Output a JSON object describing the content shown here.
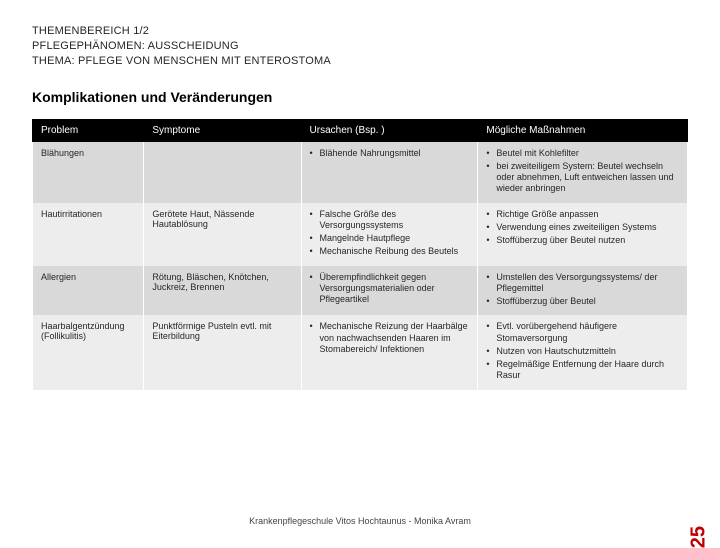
{
  "header": {
    "line1": "THEMENBEREICH 1/2",
    "line2": "PFLEGEPHÄNOMEN: AUSSCHEIDUNG",
    "line3": "THEMA: PFLEGE VON MENSCHEN MIT ENTEROSTOMA"
  },
  "section_title": "Komplikationen und Veränderungen",
  "table": {
    "columns": [
      "Problem",
      "Symptome",
      "Ursachen (Bsp. )",
      "Mögliche Maßnahmen"
    ],
    "rows": [
      {
        "problem": "Blähungen",
        "symptome": "",
        "ursachen": [
          "Blähende Nahrungsmittel"
        ],
        "massnahmen": [
          "Beutel mit Kohlefilter",
          "bei zweiteiligem System: Beutel wechseln oder abnehmen, Luft entweichen lassen und wieder anbringen"
        ]
      },
      {
        "problem": "Hautirritationen",
        "symptome": "Gerötete Haut, Nässende Hautablösung",
        "ursachen": [
          "Falsche Größe des Versorgungssystems",
          "Mangelnde Hautpflege",
          "Mechanische Reibung des Beutels"
        ],
        "massnahmen": [
          "Richtige Größe anpassen",
          "Verwendung eines zweiteiligen Systems",
          "Stoffüberzug über Beutel nutzen"
        ]
      },
      {
        "problem": "Allergien",
        "symptome": "Rötung, Bläschen, Knötchen, Juckreiz, Brennen",
        "ursachen": [
          "Überempfindlichkeit gegen Versorgungsmaterialien oder Pflegeartikel"
        ],
        "massnahmen": [
          "Umstellen des Versorgungssystems/ der Pflegemittel",
          "Stoffüberzug über Beutel"
        ]
      },
      {
        "problem": "Haarbalgentzündung (Follikulitis)",
        "symptome": "Punktförmige Pusteln evtl. mit Eiterbildung",
        "ursachen": [
          "Mechanische Reizung der Haarbälge von nachwachsenden Haaren im Stomabereich/ Infektionen"
        ],
        "massnahmen": [
          "Evtl. vorübergehend häufigere Stomaversorgung",
          "Nutzen von Hautschutzmitteln",
          "Regelmäßige Entfernung der Haare durch Rasur"
        ]
      }
    ]
  },
  "footer": "Krankenpflegeschule Vitos Hochtaunus   -   Monika Avram",
  "page_number": "25",
  "colors": {
    "header_bg": "#000000",
    "header_fg": "#ffffff",
    "row_odd": "#d9d9d9",
    "row_even": "#ededed",
    "pagenum": "#c00000"
  }
}
